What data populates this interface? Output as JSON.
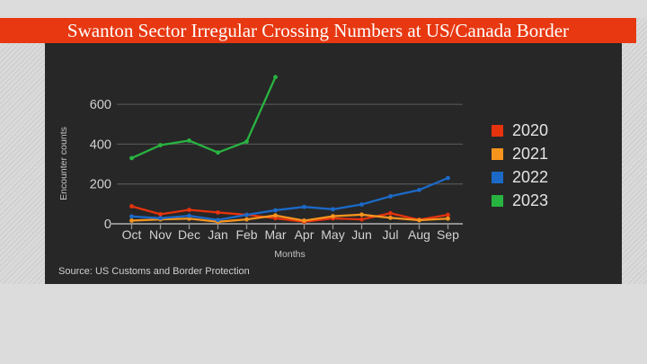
{
  "header": {
    "title": "Swanton Sector Irregular Crossing Numbers at US/Canada Border"
  },
  "footer": {
    "source": "Source: US Customs and Border Protection"
  },
  "colors": {
    "banner": "#e73811",
    "banner_text": "#ffffff",
    "panel_background": "#272727",
    "page_background": "#dcdcdc",
    "gridline": "#525252",
    "axis_line": "#909090",
    "tick_label": "#d2d2d2",
    "axis_title": "#c4c4c4",
    "legend_text": "#e4e4e4",
    "source_text": "#cfcfcf"
  },
  "chart_data": {
    "type": "line",
    "title": "Swanton Sector Irregular Crossing Numbers at US/Canada Border",
    "categories": [
      "Oct",
      "Nov",
      "Dec",
      "Jan",
      "Feb",
      "Mar",
      "Apr",
      "May",
      "Jun",
      "Jul",
      "Aug",
      "Sep"
    ],
    "xlabel": "Months",
    "ylabel": "Encounter counts",
    "yticks": [
      0,
      200,
      400,
      600
    ],
    "ylim": [
      0,
      760
    ],
    "grid": true,
    "legend_position": "right",
    "markers": true,
    "series": [
      {
        "name": "2020",
        "color": "#e5330e",
        "values": [
          88,
          48,
          70,
          57,
          45,
          28,
          10,
          27,
          22,
          53,
          20,
          45
        ]
      },
      {
        "name": "2021",
        "color": "#f6941e",
        "values": [
          16,
          22,
          26,
          10,
          22,
          42,
          16,
          38,
          46,
          30,
          18,
          26
        ]
      },
      {
        "name": "2022",
        "color": "#1c69c7",
        "values": [
          37,
          28,
          40,
          19,
          45,
          68,
          85,
          73,
          97,
          138,
          170,
          230
        ]
      },
      {
        "name": "2023",
        "color": "#28b441",
        "values": [
          330,
          395,
          418,
          358,
          413,
          737,
          null,
          null,
          null,
          null,
          null,
          null
        ]
      }
    ]
  }
}
